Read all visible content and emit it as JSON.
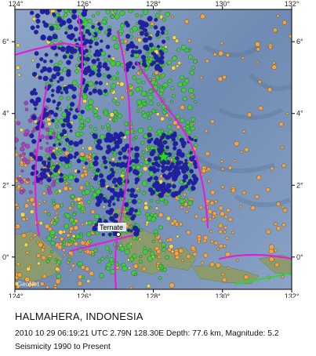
{
  "map": {
    "lon_ticks": [
      "124°",
      "126°",
      "128°",
      "130°",
      "132°"
    ],
    "lat_ticks": [
      "6°",
      "4°",
      "2°",
      "0°"
    ],
    "city_label": "Ternate",
    "credit": "GeoNet",
    "extent": {
      "lon_min": 124,
      "lon_max": 132,
      "lat_min": -0.9,
      "lat_max": 6.9
    },
    "epicenter": {
      "lat": 2.79,
      "lon": 128.3
    },
    "colors": {
      "ocean": "#6f8bb3",
      "ocean_deep": "#4f6a94",
      "land": "#8a9a6a",
      "depth_shallow": "#f5a33c",
      "depth_intermediate": "#f5d64a",
      "depth_mid": "#3fcc3f",
      "depth_deep": "#1d1db4",
      "depth_very_deep": "#b13fc4",
      "plate_boundary": "#e020d8",
      "fault_green": "#2fd62f",
      "epicenter_star": "#22dd22"
    }
  },
  "caption": {
    "title": "HALMAHERA, INDONESIA",
    "event": "2010 10 29 06:19:21 UTC 2.79N 128.30E Depth: 77.6 km, Magnitude: 5.2",
    "subtitle": "Seismicity 1990 to Present"
  }
}
